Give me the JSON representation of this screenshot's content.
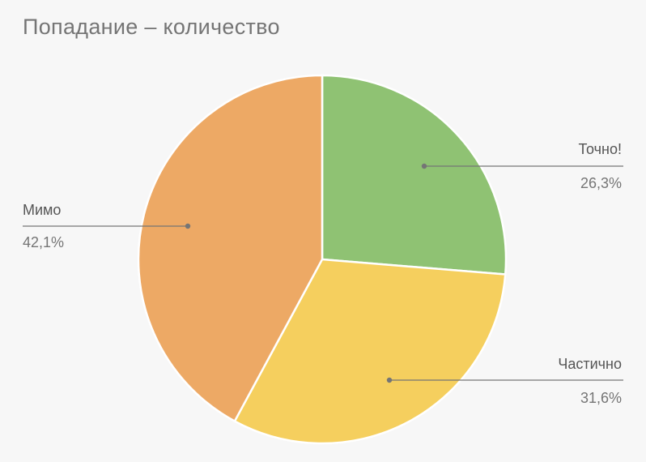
{
  "chart_data": {
    "type": "pie",
    "title": "Попадание – количество",
    "slices": [
      {
        "label": "Точно!",
        "value": 26.3,
        "value_text": "26,3%",
        "color": "#8fc273"
      },
      {
        "label": "Частично",
        "value": 31.6,
        "value_text": "31,6%",
        "color": "#f5cf5e"
      },
      {
        "label": "Мимо",
        "value": 42.1,
        "value_text": "42,1%",
        "color": "#eda965"
      }
    ],
    "start_angle_deg": 0,
    "direction": "clockwise",
    "slice_border_color": "#ffffff",
    "leader_line_color": "#757575",
    "label_text_color": "#757575"
  }
}
